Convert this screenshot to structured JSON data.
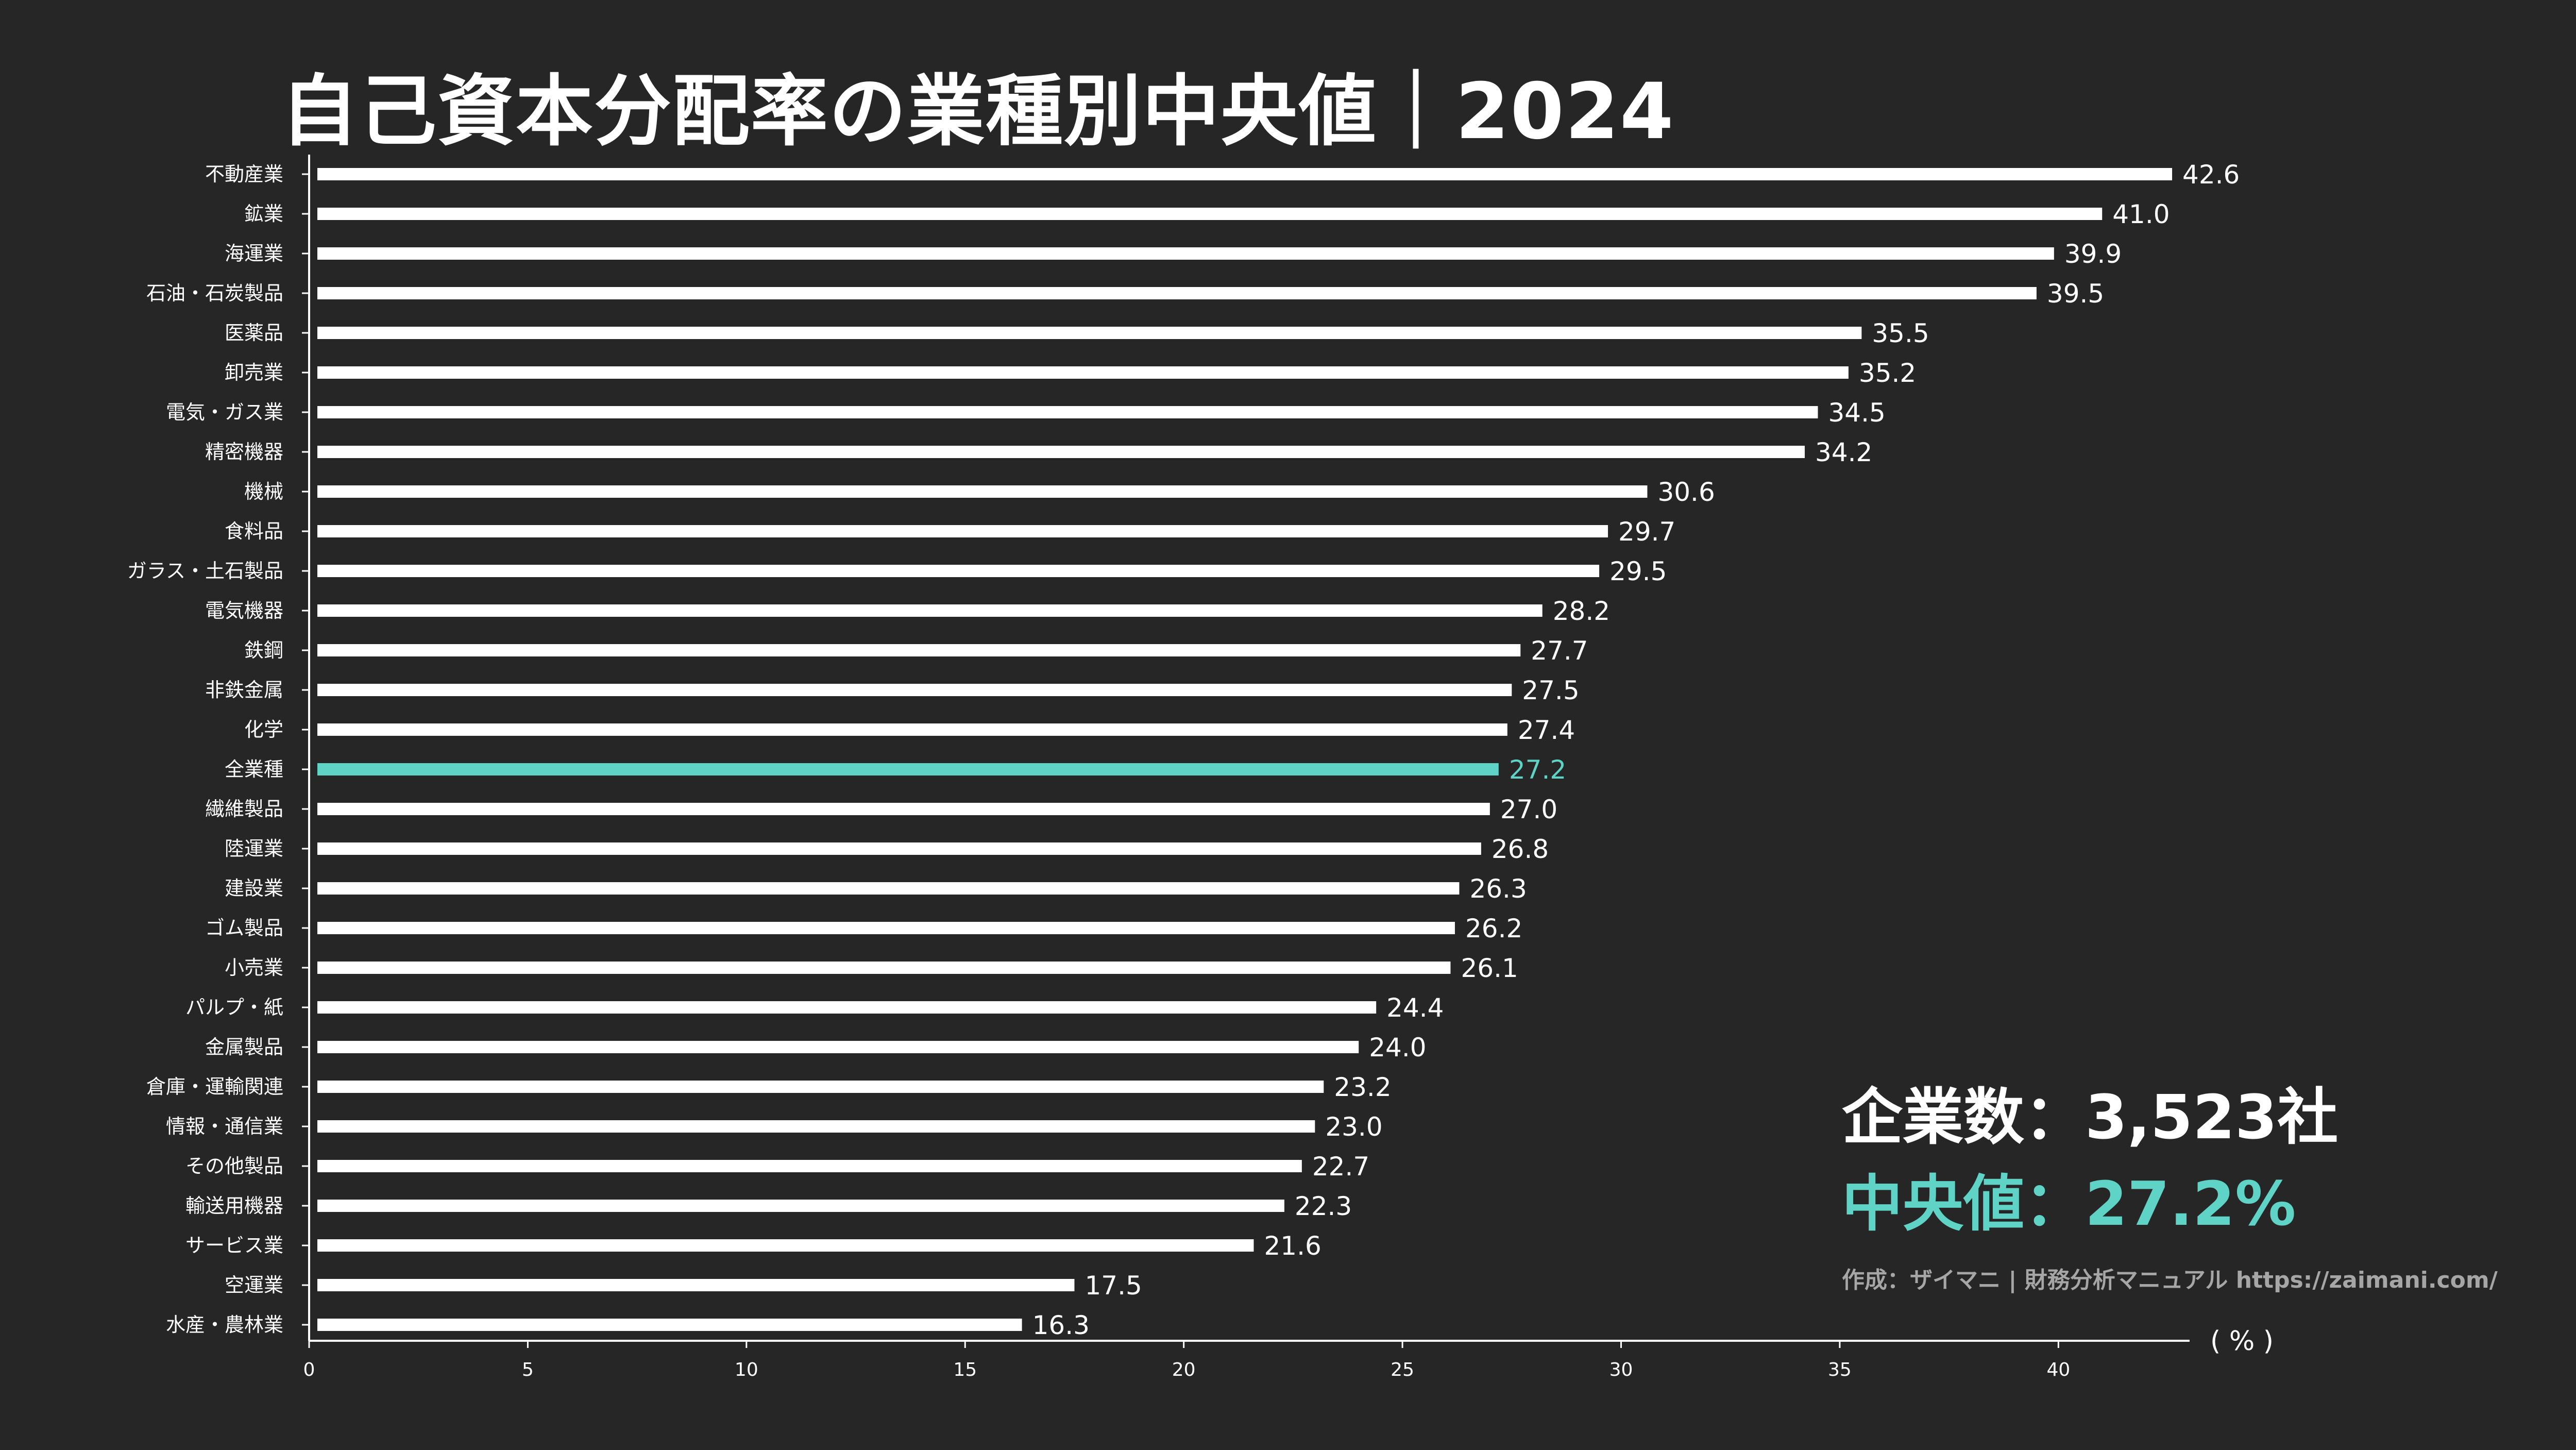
{
  "title": "自己資本分配率の業種別中央値｜2024",
  "info": {
    "companies": "企業数：3,523社",
    "median": "中央値：27.2%",
    "credit": "作成：ザイマニ | 財務分析マニュアル https://zaimani.com/"
  },
  "colors": {
    "background": "#262626",
    "bar": "#ffffff",
    "highlight": "#5ed3c6"
  },
  "chart_data": {
    "type": "bar",
    "orientation": "horizontal",
    "categories": [
      "不動産業",
      "鉱業",
      "海運業",
      "石油・石炭製品",
      "医薬品",
      "卸売業",
      "電気・ガス業",
      "精密機器",
      "機械",
      "食料品",
      "ガラス・土石製品",
      "電気機器",
      "鉄鋼",
      "非鉄金属",
      "化学",
      "全業種",
      "繊維製品",
      "陸運業",
      "建設業",
      "ゴム製品",
      "小売業",
      "パルプ・紙",
      "金属製品",
      "倉庫・運輸関連",
      "情報・通信業",
      "その他製品",
      "輸送用機器",
      "サービス業",
      "空運業",
      "水産・農林業"
    ],
    "values": [
      42.6,
      41.0,
      39.9,
      39.5,
      35.5,
      35.2,
      34.5,
      34.2,
      30.6,
      29.7,
      29.5,
      28.2,
      27.7,
      27.5,
      27.4,
      27.2,
      27.0,
      26.8,
      26.3,
      26.2,
      26.1,
      24.4,
      24.0,
      23.2,
      23.0,
      22.7,
      22.3,
      21.6,
      17.5,
      16.3
    ],
    "value_labels": [
      "42.6",
      "41.0",
      "39.9",
      "39.5",
      "35.5",
      "35.2",
      "34.5",
      "34.2",
      "30.6",
      "29.7",
      "29.5",
      "28.2",
      "27.7",
      "27.5",
      "27.4",
      "27.2",
      "27.0",
      "26.8",
      "26.3",
      "26.2",
      "26.1",
      "24.4",
      "24.0",
      "23.2",
      "23.0",
      "22.7",
      "22.3",
      "21.6",
      "17.5",
      "16.3"
    ],
    "highlight_category": "全業種",
    "xticks": [
      "0",
      "5",
      "10",
      "15",
      "20",
      "25",
      "30",
      "35",
      "40"
    ],
    "xunit": "( % )",
    "xlim": [
      0,
      43
    ]
  }
}
